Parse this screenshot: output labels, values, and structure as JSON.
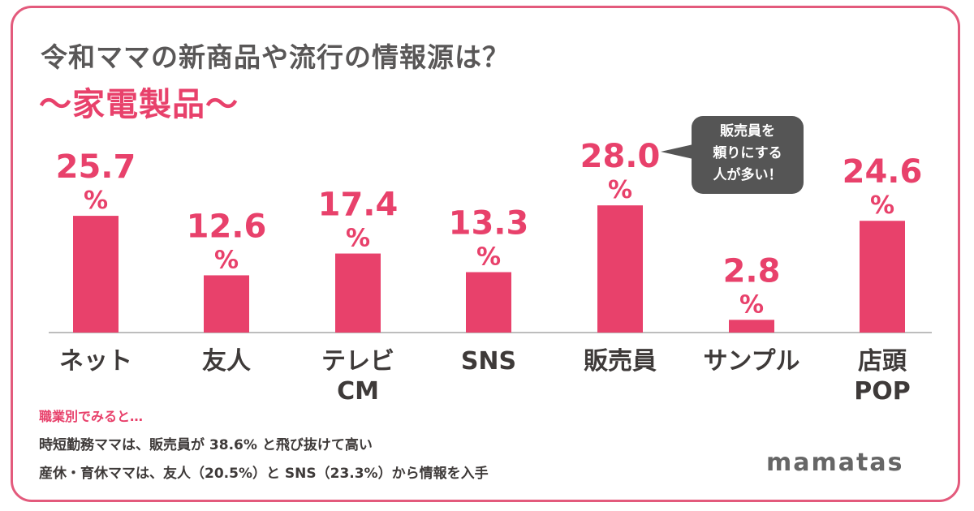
{
  "title": "令和ママの新商品や流行の情報源は？",
  "subtitle": "～家電製品～",
  "chart_data": {
    "type": "bar",
    "categories": [
      [
        "ネット"
      ],
      [
        "友人"
      ],
      [
        "テレビ",
        "CM"
      ],
      [
        "SNS"
      ],
      [
        "販売員"
      ],
      [
        "サンプル"
      ],
      [
        "店頭",
        "POP"
      ]
    ],
    "values": [
      25.7,
      12.6,
      17.4,
      13.3,
      28.0,
      2.8,
      24.6
    ],
    "value_labels": [
      "25.7",
      "12.6",
      "17.4",
      "13.3",
      "28.0",
      "2.8",
      "24.6"
    ],
    "unit": "%",
    "bar_color": "#e8416b",
    "xlabel": "",
    "ylabel": "",
    "grid": false,
    "legend": "none"
  },
  "callout": {
    "lines": [
      "販売員を",
      "頼りにする",
      "人が多い！"
    ]
  },
  "notes": {
    "heading": "職業別でみると…",
    "items": [
      "時短勤務ママは、販売員が 38.6% と飛び抜けて高い",
      "産休・育休ママは、友人（20.5%）と SNS（23.3%）から情報を入手"
    ]
  },
  "brand": "mamatas",
  "colors": {
    "accent": "#e8416b",
    "border": "#e35a7c",
    "title": "#595757",
    "callout_bg": "#555555"
  }
}
